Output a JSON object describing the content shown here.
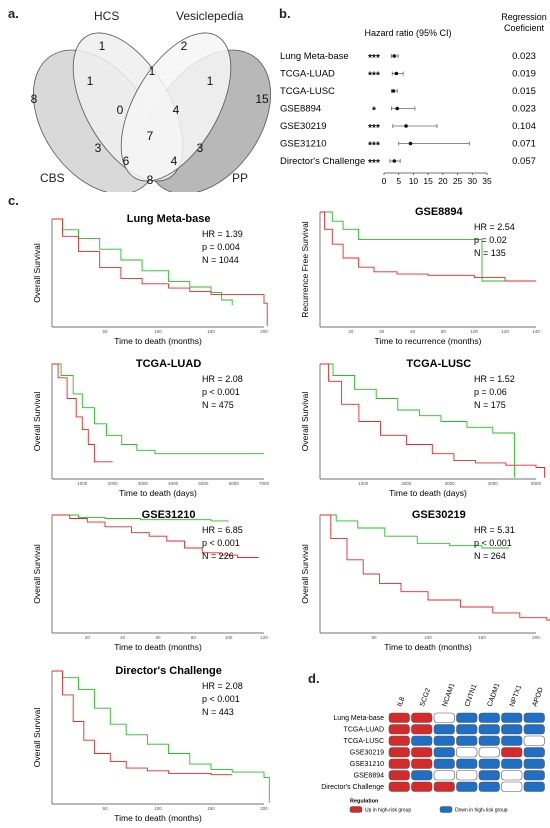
{
  "panels": {
    "a": "a.",
    "b": "b.",
    "c": "c.",
    "d": "d."
  },
  "venn": {
    "sets": [
      "HCS",
      "Vesiclepedia",
      "CBS",
      "PP"
    ],
    "regions": [
      "8",
      "1",
      "1",
      "0",
      "3",
      "1",
      "2",
      "4",
      "7",
      "6",
      "4",
      "1",
      "15",
      "3",
      "8"
    ]
  },
  "forest": {
    "title": "Hazard ratio (95% CI)",
    "coef_header_1": "Regression",
    "coef_header_2": "Coeficient",
    "rows": [
      {
        "name": "Lung Meta-base",
        "sig": "***",
        "hr": 3.5,
        "lo": 2.5,
        "hi": 4.8,
        "coef": "0.023"
      },
      {
        "name": "TCGA-LUAD",
        "sig": "***",
        "hr": 4.2,
        "lo": 2.8,
        "hi": 6.5,
        "coef": "0.019"
      },
      {
        "name": "TCGA-LUSC",
        "sig": "",
        "hr": 3.2,
        "lo": 2.5,
        "hi": 4.5,
        "coef": "0.015"
      },
      {
        "name": "GSE8894",
        "sig": "*",
        "hr": 4.5,
        "lo": 2.5,
        "hi": 10.5,
        "coef": "0.023"
      },
      {
        "name": "GSE30219",
        "sig": "***",
        "hr": 7.5,
        "lo": 3.0,
        "hi": 18.0,
        "coef": "0.104"
      },
      {
        "name": "GSE31210",
        "sig": "***",
        "hr": 9.0,
        "lo": 5.0,
        "hi": 29.0,
        "coef": "0.071"
      },
      {
        "name": "Director's Challenge",
        "sig": "***",
        "hr": 3.5,
        "lo": 2.0,
        "hi": 5.5,
        "coef": "0.057"
      }
    ],
    "ticks": [
      "0",
      "5",
      "10",
      "15",
      "20",
      "25",
      "30",
      "35"
    ]
  },
  "km": [
    {
      "title": "Lung Meta-base",
      "ylabel": "Overall Survival",
      "xlabel": "Time to death (months)",
      "hr": "HR = 1.39",
      "p": "p = 0.004",
      "n": "N = 1044",
      "xticks": [
        "50",
        "100",
        "150",
        "200"
      ],
      "xmax": 200
    },
    {
      "title": "GSE8894",
      "ylabel": "Recurrence Free Survival",
      "xlabel": "Time to recurrence (months)",
      "hr": "HR = 2.54",
      "p": "p = 0.02",
      "n": "N = 135",
      "xticks": [
        "20",
        "40",
        "60",
        "80",
        "100",
        "120",
        "140"
      ],
      "xmax": 140
    },
    {
      "title": "TCGA-LUAD",
      "ylabel": "Overall Survival",
      "xlabel": "Time to death (days)",
      "hr": "HR = 2.08",
      "p": "p < 0.001",
      "n": "N = 475",
      "xticks": [
        "1000",
        "2000",
        "3000",
        "4000",
        "5000",
        "6000",
        "7000"
      ],
      "xmax": 7000
    },
    {
      "title": "TCGA-LUSC",
      "ylabel": "Overall Survival",
      "xlabel": "Time to death (days)",
      "hr": "HR = 1.52",
      "p": "p = 0.06",
      "n": "N = 175",
      "xticks": [
        "1000",
        "2000",
        "3000",
        "4000",
        "5000"
      ],
      "xmax": 5000
    },
    {
      "title": "GSE31210",
      "ylabel": "Overall Survival",
      "xlabel": "Time to death (months)",
      "hr": "HR = 6.85",
      "p": "p < 0.001",
      "n": "N = 226",
      "xticks": [
        "20",
        "40",
        "60",
        "80",
        "100",
        "120"
      ],
      "xmax": 120
    },
    {
      "title": "GSE30219",
      "ylabel": "Overall Survival",
      "xlabel": "Time to death (months)",
      "hr": "HR = 5.31",
      "p": "p < 0.001",
      "n": "N = 264",
      "xticks": [
        "50",
        "100",
        "150",
        "200"
      ],
      "xmax": 200
    },
    {
      "title": "Director's Challenge",
      "ylabel": "Overall Survival",
      "xlabel": "Time to death (months)",
      "hr": "HR = 2.08",
      "p": "p < 0.001",
      "n": "N = 443",
      "xticks": [
        "50",
        "100",
        "150",
        "200"
      ],
      "xmax": 200
    }
  ],
  "heatmap": {
    "genes": [
      "IL8",
      "SCG2",
      "NCAM1",
      "CNTN1",
      "CADM1",
      "NPTX1",
      "APOD"
    ],
    "datasets": [
      "Lung Meta-base",
      "TCGA-LUAD",
      "TCGA-LUSC",
      "GSE30219",
      "GSE31210",
      "GSE8894",
      "Director's Challenge"
    ],
    "cells": [
      [
        "up",
        "up",
        "none",
        "down",
        "down",
        "down",
        "down"
      ],
      [
        "up",
        "up",
        "down",
        "down",
        "down",
        "down",
        "down"
      ],
      [
        "up",
        "down",
        "down",
        "down",
        "down",
        "down",
        "none"
      ],
      [
        "up",
        "up",
        "down",
        "none",
        "none",
        "up",
        "down"
      ],
      [
        "up",
        "up",
        "down",
        "down",
        "down",
        "down",
        "down"
      ],
      [
        "up",
        "down",
        "none",
        "none",
        "down",
        "none",
        "down"
      ],
      [
        "up",
        "up",
        "up",
        "down",
        "down",
        "none",
        "down"
      ]
    ],
    "legend_title": "Regulation",
    "legend_up": "Up in high-risk group",
    "legend_down": "Down in high-risk group"
  },
  "colors": {
    "up": "#d42a2a",
    "down": "#1f6fc4",
    "none": "#ffffff",
    "km_high": "#e8272a",
    "km_low": "#22c21f",
    "venn_light": "#ededed",
    "venn_dark": "#bdbdbd"
  }
}
